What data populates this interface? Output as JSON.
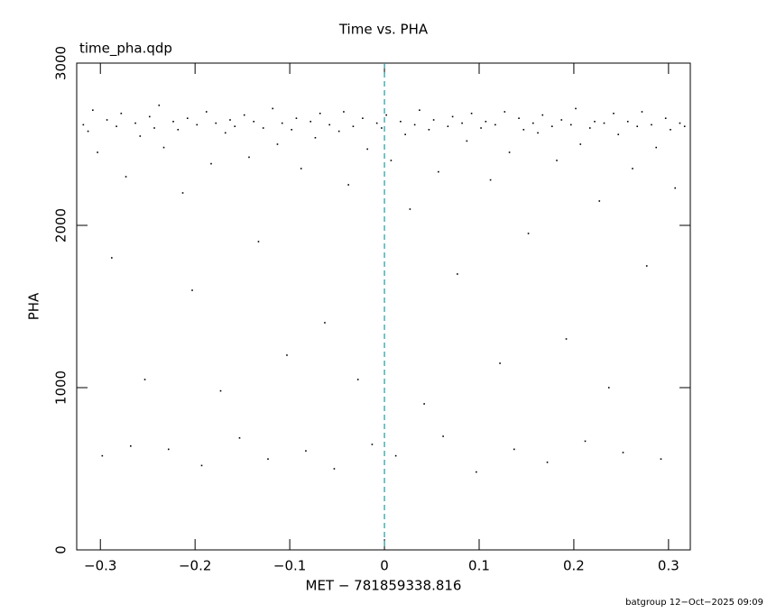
{
  "chart_data": {
    "type": "scatter",
    "title": "Time vs. PHA",
    "annotation": "time_pha.qdp",
    "x_label": "MET − 781859338.816",
    "y_label": "PHA",
    "footer": "batgroup 12−Oct−2025 09:09",
    "xlim": [
      -0.325,
      0.323
    ],
    "ylim": [
      0,
      3000
    ],
    "xticks": [
      {
        "value": -0.3,
        "label": "−0.3"
      },
      {
        "value": -0.2,
        "label": "−0.2"
      },
      {
        "value": -0.1,
        "label": "−0.1"
      },
      0,
      0.1,
      0.2,
      0.3
    ],
    "yticks": [
      0,
      1000,
      2000,
      3000
    ],
    "vline": 0,
    "vline_color": "#1b9aa5",
    "color": "#000000",
    "x": [
      -0.318,
      -0.313,
      -0.308,
      -0.303,
      -0.298,
      -0.293,
      -0.288,
      -0.283,
      -0.278,
      -0.273,
      -0.268,
      -0.263,
      -0.258,
      -0.253,
      -0.248,
      -0.243,
      -0.238,
      -0.233,
      -0.228,
      -0.223,
      -0.218,
      -0.213,
      -0.208,
      -0.203,
      -0.198,
      -0.193,
      -0.188,
      -0.183,
      -0.178,
      -0.173,
      -0.168,
      -0.163,
      -0.158,
      -0.153,
      -0.148,
      -0.143,
      -0.138,
      -0.133,
      -0.128,
      -0.123,
      -0.118,
      -0.113,
      -0.108,
      -0.103,
      -0.098,
      -0.093,
      -0.088,
      -0.083,
      -0.078,
      -0.073,
      -0.068,
      -0.063,
      -0.058,
      -0.053,
      -0.048,
      -0.043,
      -0.038,
      -0.033,
      -0.028,
      -0.023,
      -0.018,
      -0.013,
      -0.008,
      -0.003,
      0.002,
      0.007,
      0.012,
      0.017,
      0.022,
      0.027,
      0.032,
      0.037,
      0.042,
      0.047,
      0.052,
      0.057,
      0.062,
      0.067,
      0.072,
      0.077,
      0.082,
      0.087,
      0.092,
      0.097,
      0.102,
      0.107,
      0.112,
      0.117,
      0.122,
      0.127,
      0.132,
      0.137,
      0.142,
      0.147,
      0.152,
      0.157,
      0.162,
      0.167,
      0.172,
      0.177,
      0.182,
      0.187,
      0.192,
      0.197,
      0.202,
      0.207,
      0.212,
      0.217,
      0.222,
      0.227,
      0.232,
      0.237,
      0.242,
      0.247,
      0.252,
      0.257,
      0.262,
      0.267,
      0.272,
      0.277,
      0.282,
      0.287,
      0.292,
      0.297,
      0.302,
      0.307,
      0.312,
      0.317
    ],
    "y": [
      2620,
      2580,
      2710,
      2450,
      580,
      2650,
      1800,
      2610,
      2690,
      2300,
      640,
      2630,
      2550,
      1050,
      2670,
      2600,
      2740,
      2480,
      620,
      2640,
      2590,
      2200,
      2660,
      1600,
      2620,
      520,
      2700,
      2380,
      2630,
      980,
      2570,
      2650,
      2610,
      690,
      2680,
      2420,
      2640,
      1900,
      2600,
      560,
      2720,
      2500,
      2630,
      1200,
      2590,
      2660,
      2350,
      610,
      2640,
      2540,
      2690,
      1400,
      2620,
      500,
      2580,
      2700,
      2250,
      2610,
      1050,
      2660,
      2470,
      650,
      2630,
      2600,
      2680,
      2400,
      580,
      2640,
      2560,
      2100,
      2620,
      2710,
      900,
      2590,
      2650,
      2330,
      700,
      2610,
      2670,
      1700,
      2630,
      2520,
      2690,
      480,
      2600,
      2640,
      2280,
      2620,
      1150,
      2700,
      2450,
      620,
      2660,
      2590,
      1950,
      2630,
      2570,
      2680,
      540,
      2610,
      2400,
      2650,
      1300,
      2620,
      2720,
      2500,
      670,
      2600,
      2640,
      2150,
      2630,
      1000,
      2690,
      2560,
      600,
      2640,
      2350,
      2610,
      2700,
      1750,
      2620,
      2480,
      560,
      2660,
      2590,
      2230,
      2630,
      2610
    ]
  }
}
